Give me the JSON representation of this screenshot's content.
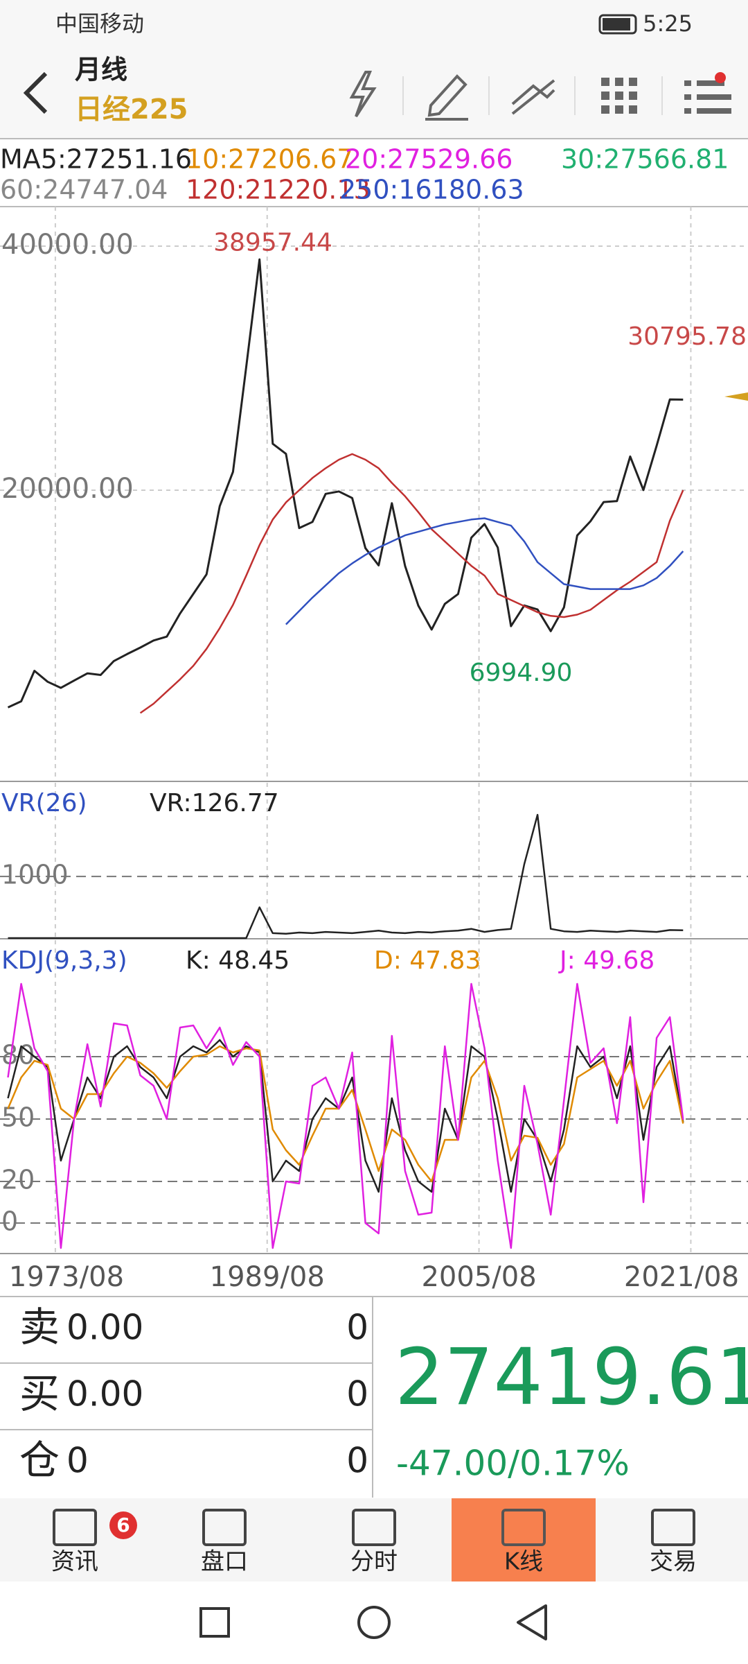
{
  "status_bar": {
    "carrier": "中国移动",
    "time": "5:25"
  },
  "header": {
    "period": "月线",
    "title": "日经225"
  },
  "chart_data": [
    {
      "type": "line",
      "legend": [
        {
          "label": "MA5:27251.16",
          "color": "#222222"
        },
        {
          "label": "10:27206.67",
          "color": "#e08a00"
        },
        {
          "label": "20:27529.66",
          "color": "#e020e0"
        },
        {
          "label": "30:27566.81",
          "color": "#20b070"
        },
        {
          "label": "60:24747.04",
          "color": "#888888"
        },
        {
          "label": "120:21220.13",
          "color": "#c03030"
        },
        {
          "label": "250:16180.63",
          "color": "#3050c0"
        }
      ],
      "x": [
        1970,
        1971,
        1972,
        1973,
        1974,
        1975,
        1976,
        1977,
        1978,
        1979,
        1980,
        1981,
        1982,
        1983,
        1984,
        1985,
        1986,
        1987,
        1988,
        1989,
        1990,
        1991,
        1992,
        1993,
        1994,
        1995,
        1996,
        1997,
        1998,
        1999,
        2000,
        2001,
        2002,
        2003,
        2004,
        2005,
        2006,
        2007,
        2008,
        2009,
        2010,
        2011,
        2012,
        2013,
        2014,
        2015,
        2016,
        2017,
        2018,
        2019,
        2020,
        2021
      ],
      "series": [
        {
          "color": "#222222",
          "values": [
            2200,
            2700,
            5200,
            4300,
            3800,
            4400,
            4990,
            4860,
            6000,
            6570,
            7100,
            7680,
            8000,
            9900,
            11500,
            13100,
            18700,
            21500,
            30100,
            38916,
            23800,
            22980,
            16900,
            17400,
            19700,
            19900,
            19360,
            15250,
            13840,
            18930,
            13785,
            10540,
            8580,
            10680,
            11490,
            16110,
            17230,
            15300,
            8860,
            10550,
            10230,
            8450,
            10400,
            16290,
            17450,
            19030,
            19110,
            22760,
            20010,
            23650,
            27440,
            27420
          ]
        },
        {
          "color": "#c03030",
          "values": [
            null,
            null,
            null,
            null,
            null,
            null,
            null,
            null,
            null,
            null,
            1740,
            2500,
            3500,
            4500,
            5600,
            7000,
            8700,
            10600,
            13000,
            15500,
            17600,
            19000,
            20000,
            21000,
            21800,
            22500,
            22960,
            22500,
            21800,
            20600,
            19500,
            18200,
            16800,
            15800,
            14800,
            13800,
            13000,
            11500,
            11000,
            10500,
            10000,
            9700,
            9600,
            9800,
            10200,
            11000,
            11800,
            12500,
            13300,
            14100,
            17500,
            20000
          ]
        },
        {
          "color": "#3050c0",
          "values": [
            null,
            null,
            null,
            null,
            null,
            null,
            null,
            null,
            null,
            null,
            null,
            null,
            null,
            null,
            null,
            null,
            null,
            null,
            null,
            null,
            null,
            9000,
            10100,
            11200,
            12200,
            13200,
            14000,
            14700,
            15300,
            15800,
            16300,
            16600,
            16900,
            17200,
            17400,
            17600,
            17700,
            17400,
            17100,
            15800,
            14100,
            13200,
            12300,
            12100,
            11900,
            11900,
            11900,
            11900,
            12200,
            12800,
            13800,
            15000
          ]
        }
      ],
      "xlim": [
        1969.4,
        2025.9
      ],
      "xticks": [
        {
          "value": 1973.58,
          "label": "1973/08"
        },
        {
          "value": 1989.58,
          "label": "1989/08"
        },
        {
          "value": 2005.58,
          "label": "2005/08"
        },
        {
          "value": 2021.58,
          "label": "2021/08"
        }
      ],
      "ylim": [
        -3750,
        43240
      ],
      "yticks": [
        {
          "value": 20000,
          "label": "20000.00"
        },
        {
          "value": 40000,
          "label": "40000.00"
        }
      ],
      "annotations": {
        "high": 38957.44,
        "recent_high": 30795.78,
        "low": {
          "value": 6994.9,
          "label": "6994.90"
        }
      },
      "grid": true
    },
    {
      "type": "line",
      "title": "VR(26)",
      "readout": "VR:126.77",
      "series": [
        {
          "color": "#222222",
          "values": [
            0,
            0,
            0,
            0,
            0,
            0,
            0,
            0,
            0,
            0,
            0,
            0,
            0,
            0,
            0,
            0,
            0,
            0,
            0,
            500,
            80,
            70,
            90,
            80,
            100,
            90,
            80,
            100,
            120,
            90,
            80,
            100,
            90,
            110,
            120,
            150,
            100,
            130,
            150,
            1200,
            2000,
            150,
            110,
            100,
            120,
            110,
            100,
            120,
            110,
            100,
            130,
            127
          ]
        }
      ],
      "ylim": [
        0,
        2520
      ],
      "yticks": [
        1000
      ],
      "grid": true
    },
    {
      "type": "line",
      "title": "KDJ(9,3,3)",
      "series": [
        {
          "name": "K: 48.45",
          "color": "#222222",
          "values": [
            60,
            85,
            80,
            75,
            30,
            50,
            70,
            60,
            80,
            85,
            75,
            70,
            60,
            80,
            85,
            82,
            88,
            80,
            85,
            82,
            20,
            30,
            25,
            50,
            60,
            55,
            70,
            30,
            15,
            60,
            35,
            20,
            15,
            55,
            40,
            85,
            80,
            50,
            15,
            50,
            40,
            20,
            45,
            85,
            75,
            80,
            60,
            85,
            40,
            75,
            85,
            48.45
          ]
        },
        {
          "name": "D: 47.83",
          "color": "#e08a00",
          "values": [
            55,
            70,
            78,
            76,
            55,
            50,
            62,
            62,
            72,
            80,
            77,
            72,
            65,
            73,
            80,
            81,
            85,
            82,
            84,
            83,
            45,
            35,
            28,
            42,
            55,
            55,
            64,
            45,
            25,
            45,
            40,
            28,
            20,
            40,
            40,
            70,
            78,
            60,
            30,
            42,
            41,
            28,
            38,
            70,
            74,
            78,
            66,
            78,
            55,
            68,
            78,
            47.83
          ]
        },
        {
          "name": "J: 49.68",
          "color": "#e020e0",
          "values": [
            70,
            115,
            84,
            73,
            -12,
            50,
            86,
            56,
            96,
            95,
            71,
            66,
            50,
            94,
            95,
            84,
            94,
            76,
            87,
            80,
            -12,
            20,
            19,
            66,
            70,
            55,
            82,
            0,
            -5,
            90,
            25,
            4,
            5,
            85,
            40,
            115,
            84,
            30,
            -12,
            66,
            38,
            4,
            59,
            115,
            77,
            84,
            48,
            99,
            10,
            89,
            99,
            49.68
          ]
        }
      ],
      "ylim": [
        -14,
        136
      ],
      "yticks": [
        0,
        20,
        50,
        80
      ],
      "grid": true
    }
  ],
  "order_book": {
    "rows": [
      [
        "卖",
        "0.00",
        "0"
      ],
      [
        "买",
        "0.00",
        "0"
      ],
      [
        "仓",
        "0",
        "0"
      ]
    ]
  },
  "quote": {
    "price": "27419.61",
    "change": "-47.00/0.17%"
  },
  "nav": {
    "items": [
      {
        "label": "资讯",
        "badge": "6"
      },
      {
        "label": "盘口"
      },
      {
        "label": "分时"
      },
      {
        "label": "K线",
        "active": true
      },
      {
        "label": "交易"
      }
    ]
  }
}
